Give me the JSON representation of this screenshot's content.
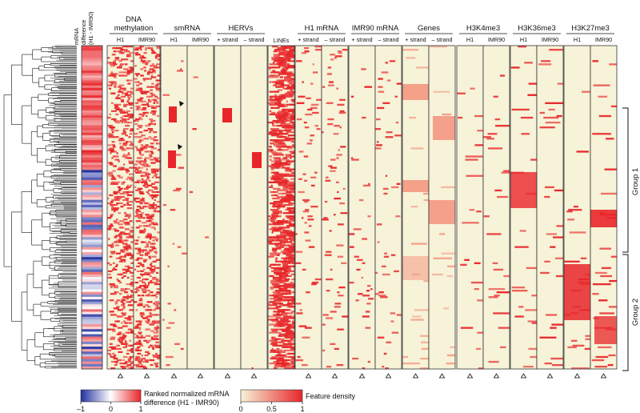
{
  "mrna_difference_label": [
    "mRNA",
    "difference",
    "(H1 - IMR90)"
  ],
  "column_groups": [
    {
      "name": "dna-methylation",
      "title_lines": [
        "DNA",
        "methylation"
      ],
      "cols": [
        "H1",
        "IMR90"
      ]
    },
    {
      "name": "smrna",
      "title_lines": [
        "smRNA"
      ],
      "cols": [
        "H1",
        "IMR90"
      ]
    },
    {
      "name": "hervs",
      "title_lines": [
        "HERVs"
      ],
      "cols": [
        "+ strand",
        "– strand"
      ]
    },
    {
      "name": "lines",
      "title_lines": [],
      "cols": [
        "LINEs"
      ]
    },
    {
      "name": "h1-mrna",
      "title_lines": [
        "H1 mRNA"
      ],
      "cols": [
        "+ strand",
        "– strand"
      ]
    },
    {
      "name": "imr90-mrna",
      "title_lines": [
        "IMR90 mRNA"
      ],
      "cols": [
        "+ strand",
        "– strand"
      ]
    },
    {
      "name": "genes",
      "title_lines": [
        "Genes"
      ],
      "cols": [
        "+ strand",
        "– strand"
      ]
    },
    {
      "name": "h3k4me3",
      "title_lines": [
        "H3K4me3"
      ],
      "cols": [
        "H1",
        "IMR90"
      ]
    },
    {
      "name": "h3k36me3",
      "title_lines": [
        "H3K36me3"
      ],
      "cols": [
        "H1",
        "IMR90"
      ]
    },
    {
      "name": "h3k27me3",
      "title_lines": [
        "H3K27me3"
      ],
      "cols": [
        "H1",
        "IMR90"
      ]
    }
  ],
  "row_groups": [
    {
      "label": "Group 1"
    },
    {
      "label": "Group 2"
    }
  ],
  "legend_mrna": {
    "title_lines": [
      "Ranked normalized mRNA",
      "difference (H1 - IMR90)"
    ],
    "ticks": [
      "–1",
      "0",
      "1"
    ],
    "colors": [
      "#2230a0",
      "#ffffff",
      "#e8262a"
    ]
  },
  "legend_density": {
    "title": "Feature density",
    "ticks": [
      "0",
      "0.5",
      "1"
    ],
    "colors": [
      "#f7f3d8",
      "#e8262a"
    ]
  },
  "colors": {
    "background_cell": "#f7f3d8",
    "feature": "#e8262a",
    "feature_light": "#f4a08a"
  }
}
